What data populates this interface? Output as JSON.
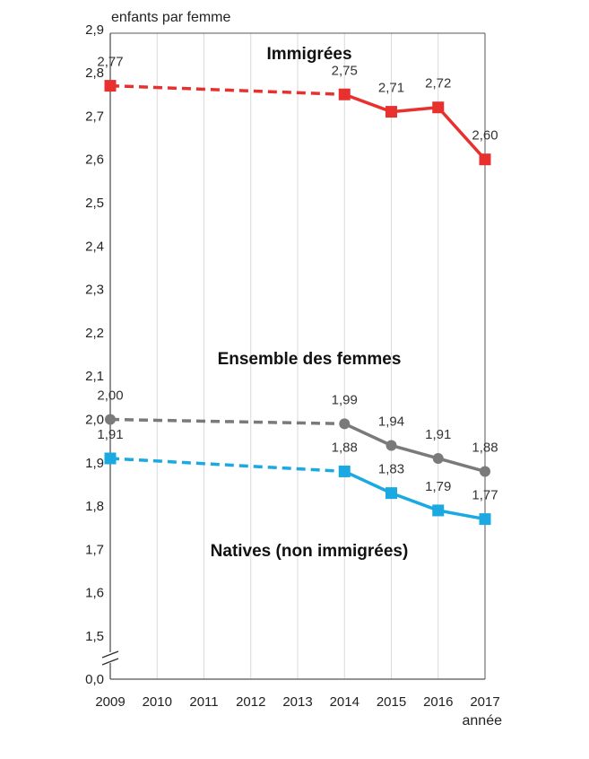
{
  "chart_data": {
    "type": "line",
    "ylabel": "enfants par femme",
    "xlabel": "année",
    "x": [
      "2009",
      "2010",
      "2011",
      "2012",
      "2013",
      "2014",
      "2015",
      "2016",
      "2017"
    ],
    "yticks": [
      "0,0",
      "1,5",
      "1,6",
      "1,7",
      "1,8",
      "1,9",
      "2,0",
      "2,1",
      "2,2",
      "2,3",
      "2,4",
      "2,5",
      "2,6",
      "2,7",
      "2,8",
      "2,9"
    ],
    "ylim": [
      1.45,
      2.9
    ],
    "axis_break": true,
    "grid": true,
    "series": [
      {
        "name": "Immigrées",
        "color": "#e8312f",
        "marker": "square",
        "x": [
          2009,
          2014,
          2015,
          2016,
          2017
        ],
        "values": [
          2.77,
          2.75,
          2.71,
          2.72,
          2.6
        ],
        "labels": [
          "2,77",
          "2,75",
          "2,71",
          "2,72",
          "2,60"
        ],
        "dashed_until": 2014
      },
      {
        "name": "Ensemble des femmes",
        "color": "#7a7a7a",
        "marker": "circle",
        "x": [
          2009,
          2014,
          2015,
          2016,
          2017
        ],
        "values": [
          2.0,
          1.99,
          1.94,
          1.91,
          1.88
        ],
        "labels": [
          "2,00",
          "1,99",
          "1,94",
          "1,91",
          "1,88"
        ],
        "dashed_until": 2014
      },
      {
        "name": "Natives (non immigrées)",
        "color": "#1ba9e1",
        "marker": "square",
        "x": [
          2009,
          2014,
          2015,
          2016,
          2017
        ],
        "values": [
          1.91,
          1.88,
          1.83,
          1.79,
          1.77
        ],
        "labels": [
          "1,91",
          "1,88",
          "1,83",
          "1,79",
          "1,77"
        ],
        "dashed_until": 2014
      }
    ]
  }
}
